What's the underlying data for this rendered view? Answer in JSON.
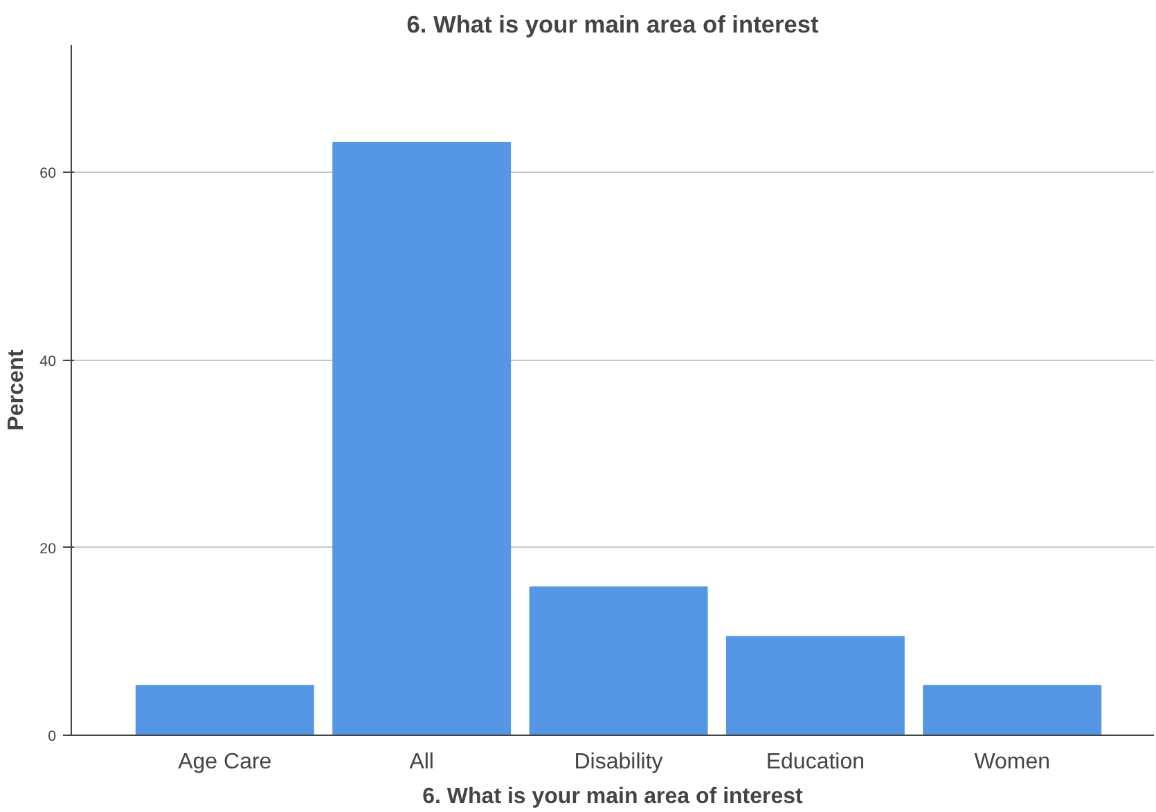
{
  "chart_data": {
    "type": "bar",
    "title": "6. What is your main area of interest",
    "xlabel": "6. What is your main area of interest",
    "ylabel": "Percent",
    "categories": [
      "Age Care",
      "All",
      "Disability",
      "Education",
      "Women"
    ],
    "values": [
      5.3,
      63.2,
      15.8,
      10.5,
      5.3
    ],
    "color": "#5597e5",
    "ylim": [
      0,
      73.6
    ],
    "yticks": [
      0,
      20,
      40,
      60
    ],
    "grid": "y"
  }
}
